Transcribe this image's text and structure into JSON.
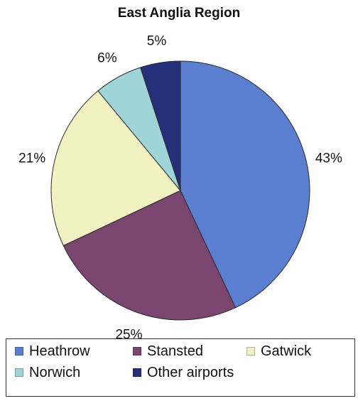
{
  "chart_data": {
    "type": "pie",
    "title": "East Anglia Region",
    "categories": [
      "Heathrow",
      "Stansted",
      "Gatwick",
      "Norwich",
      "Other airports"
    ],
    "values": [
      43,
      25,
      21,
      6,
      5
    ],
    "value_labels": [
      "43%",
      "25%",
      "21%",
      "6%",
      "5%"
    ],
    "colors": [
      "#5b7fd0",
      "#7a4670",
      "#f1f1c2",
      "#9fd4d8",
      "#25307a"
    ],
    "legend": {
      "placement": "bottom",
      "entries": [
        "Heathrow",
        "Stansted",
        "Gatwick",
        "Norwich",
        "Other airports"
      ]
    }
  }
}
